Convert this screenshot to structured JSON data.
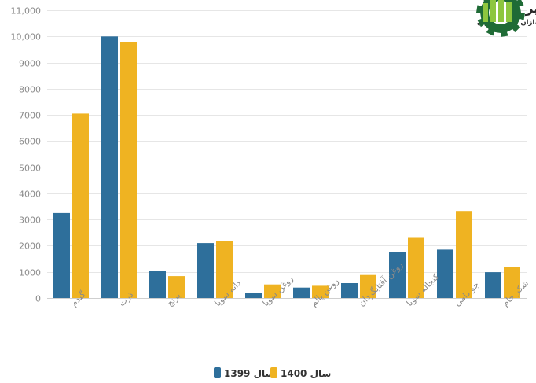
{
  "logo": {
    "title": "مسیر اقتصاد",
    "subtitle": "رسانه تصمیم سازان اقتصاد ایران",
    "icon": "gear-chart-icon",
    "colors": {
      "bars": "#8dc63f",
      "gear": "#1f6b36"
    }
  },
  "chart_data": {
    "type": "bar",
    "categories": [
      "گندم",
      "ذرت",
      "برنج",
      "دانه سویا",
      "روغن سویا",
      "روغن پالم",
      "روغن آفتابگردان",
      "کنجاله سویا",
      "جو دامی",
      "شکر خام"
    ],
    "series": [
      {
        "name": "سال 1399",
        "color": "#2e6f9b",
        "values": [
          3250,
          10000,
          1030,
          2100,
          210,
          400,
          570,
          1750,
          1850,
          990
        ]
      },
      {
        "name": "سال 1400",
        "color": "#efb322",
        "values": [
          7050,
          9780,
          840,
          2190,
          520,
          470,
          880,
          2330,
          3330,
          1190
        ]
      }
    ],
    "ylim": [
      0,
      11000
    ],
    "yticks": [
      "0",
      "1000",
      "2000",
      "3000",
      "4000",
      "5000",
      "6000",
      "7000",
      "8000",
      "9000",
      "10,000",
      "11,000"
    ],
    "grid": true,
    "legend": "bottom-center"
  }
}
